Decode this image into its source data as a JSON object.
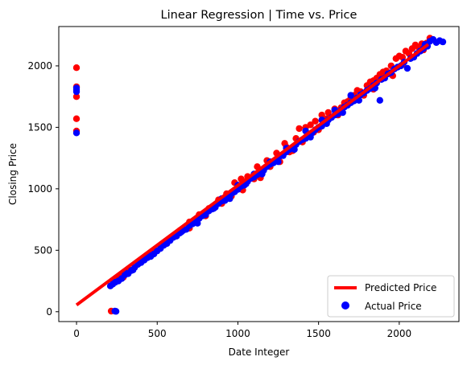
{
  "chart_data": {
    "type": "scatter",
    "title": "Linear Regression | Time vs. Price",
    "xlabel": "Date Integer",
    "ylabel": "Closing Price",
    "xlim": [
      -110,
      2370
    ],
    "ylim": [
      -80,
      2320
    ],
    "xticks": [
      0,
      500,
      1000,
      1500,
      2000
    ],
    "yticks": [
      0,
      500,
      1000,
      1500,
      2000
    ],
    "grid": false,
    "legend_position": "bottom-right",
    "colors": {
      "predicted_price": "#ff0000",
      "actual_price": "#0000ff",
      "prediction_scatter": "#ff0000"
    },
    "regression_line": {
      "name": "Predicted Price",
      "points": [
        [
          0,
          55
        ],
        [
          2180,
          2175
        ]
      ]
    },
    "series": [
      {
        "name": "Actual Price",
        "marker_color": "#0000ff",
        "points": [
          [
            0,
            1455
          ],
          [
            0,
            1790
          ],
          [
            0,
            1805
          ],
          [
            0,
            1820
          ],
          [
            238,
            5
          ],
          [
            245,
            3
          ],
          [
            210,
            210
          ],
          [
            225,
            225
          ],
          [
            240,
            240
          ],
          [
            260,
            250
          ],
          [
            280,
            270
          ],
          [
            300,
            300
          ],
          [
            320,
            310
          ],
          [
            340,
            335
          ],
          [
            360,
            360
          ],
          [
            380,
            385
          ],
          [
            400,
            400
          ],
          [
            420,
            420
          ],
          [
            440,
            440
          ],
          [
            460,
            450
          ],
          [
            480,
            470
          ],
          [
            500,
            495
          ],
          [
            520,
            515
          ],
          [
            540,
            540
          ],
          [
            560,
            555
          ],
          [
            580,
            580
          ],
          [
            600,
            605
          ],
          [
            620,
            615
          ],
          [
            640,
            640
          ],
          [
            660,
            660
          ],
          [
            680,
            670
          ],
          [
            700,
            700
          ],
          [
            720,
            715
          ],
          [
            740,
            735
          ],
          [
            760,
            760
          ],
          [
            780,
            780
          ],
          [
            800,
            790
          ],
          [
            820,
            820
          ],
          [
            840,
            835
          ],
          [
            860,
            850
          ],
          [
            880,
            880
          ],
          [
            900,
            900
          ],
          [
            920,
            905
          ],
          [
            940,
            935
          ],
          [
            960,
            960
          ],
          [
            980,
            975
          ],
          [
            1000,
            995
          ],
          [
            1020,
            1020
          ],
          [
            1040,
            1030
          ],
          [
            1060,
            1060
          ],
          [
            1080,
            1085
          ],
          [
            1100,
            1095
          ],
          [
            1120,
            1115
          ],
          [
            1140,
            1140
          ],
          [
            1160,
            1150
          ],
          [
            1180,
            1180
          ],
          [
            1200,
            1200
          ],
          [
            1220,
            1210
          ],
          [
            1240,
            1240
          ],
          [
            1260,
            1265
          ],
          [
            1280,
            1270
          ],
          [
            1300,
            1300
          ],
          [
            1320,
            1320
          ],
          [
            1340,
            1330
          ],
          [
            1360,
            1360
          ],
          [
            1380,
            1385
          ],
          [
            1400,
            1400
          ],
          [
            1420,
            1410
          ],
          [
            1440,
            1440
          ],
          [
            1460,
            1455
          ],
          [
            1480,
            1480
          ],
          [
            1500,
            1500
          ],
          [
            1520,
            1510
          ],
          [
            1540,
            1545
          ],
          [
            1560,
            1560
          ],
          [
            1580,
            1580
          ],
          [
            1600,
            1600
          ],
          [
            1620,
            1610
          ],
          [
            1640,
            1640
          ],
          [
            1660,
            1665
          ],
          [
            1680,
            1680
          ],
          [
            1700,
            1700
          ],
          [
            1720,
            1715
          ],
          [
            1740,
            1740
          ],
          [
            1760,
            1765
          ],
          [
            1780,
            1780
          ],
          [
            1800,
            1800
          ],
          [
            1820,
            1815
          ],
          [
            1840,
            1840
          ],
          [
            1860,
            1860
          ],
          [
            1880,
            1720
          ],
          [
            1890,
            1890
          ],
          [
            1910,
            1900
          ],
          [
            1930,
            1935
          ],
          [
            1950,
            1945
          ],
          [
            1970,
            1975
          ],
          [
            1990,
            1990
          ],
          [
            2010,
            2000
          ],
          [
            2030,
            2030
          ],
          [
            2050,
            1980
          ],
          [
            2070,
            2060
          ],
          [
            2090,
            2070
          ],
          [
            2110,
            2100
          ],
          [
            2130,
            2120
          ],
          [
            2150,
            2140
          ],
          [
            2160,
            2175
          ],
          [
            2175,
            2160
          ],
          [
            2190,
            2200
          ],
          [
            2210,
            2215
          ],
          [
            2230,
            2190
          ],
          [
            2250,
            2205
          ],
          [
            2270,
            2195
          ],
          [
            300,
            320
          ],
          [
            350,
            340
          ],
          [
            450,
            460
          ],
          [
            550,
            560
          ],
          [
            650,
            650
          ],
          [
            750,
            720
          ],
          [
            850,
            840
          ],
          [
            950,
            920
          ],
          [
            1050,
            1040
          ],
          [
            1150,
            1120
          ],
          [
            1250,
            1220
          ],
          [
            1350,
            1320
          ],
          [
            1450,
            1420
          ],
          [
            1550,
            1530
          ],
          [
            1650,
            1620
          ],
          [
            1750,
            1720
          ],
          [
            1850,
            1820
          ],
          [
            1420,
            1470
          ],
          [
            1520,
            1560
          ],
          [
            1600,
            1640
          ],
          [
            1700,
            1760
          ],
          [
            1300,
            1330
          ],
          [
            1200,
            1220
          ],
          [
            1100,
            1120
          ],
          [
            1000,
            1030
          ],
          [
            900,
            920
          ]
        ]
      },
      {
        "name": "",
        "marker_color": "#ff0000",
        "points": [
          [
            0,
            1985
          ],
          [
            0,
            1830
          ],
          [
            0,
            1750
          ],
          [
            0,
            1570
          ],
          [
            0,
            1470
          ],
          [
            215,
            5
          ],
          [
            230,
            250
          ],
          [
            250,
            265
          ],
          [
            270,
            290
          ],
          [
            290,
            280
          ],
          [
            310,
            325
          ],
          [
            330,
            340
          ],
          [
            400,
            420
          ],
          [
            480,
            490
          ],
          [
            560,
            570
          ],
          [
            640,
            660
          ],
          [
            700,
            730
          ],
          [
            760,
            790
          ],
          [
            820,
            840
          ],
          [
            880,
            910
          ],
          [
            930,
            960
          ],
          [
            980,
            1050
          ],
          [
            1020,
            1080
          ],
          [
            1060,
            1100
          ],
          [
            1120,
            1180
          ],
          [
            1180,
            1230
          ],
          [
            1240,
            1290
          ],
          [
            1290,
            1370
          ],
          [
            1340,
            1310
          ],
          [
            1380,
            1490
          ],
          [
            1420,
            1500
          ],
          [
            1450,
            1520
          ],
          [
            1480,
            1550
          ],
          [
            1520,
            1600
          ],
          [
            1560,
            1620
          ],
          [
            1600,
            1650
          ],
          [
            1640,
            1660
          ],
          [
            1680,
            1710
          ],
          [
            1720,
            1760
          ],
          [
            1760,
            1790
          ],
          [
            1800,
            1840
          ],
          [
            1840,
            1880
          ],
          [
            1880,
            1930
          ],
          [
            1900,
            1950
          ],
          [
            1950,
            2000
          ],
          [
            1980,
            2060
          ],
          [
            2000,
            2080
          ],
          [
            2040,
            2120
          ],
          [
            2080,
            2140
          ],
          [
            2100,
            2170
          ],
          [
            2140,
            2180
          ],
          [
            2170,
            2185
          ],
          [
            2190,
            2225
          ],
          [
            960,
            940
          ],
          [
            1030,
            990
          ],
          [
            1140,
            1090
          ],
          [
            1260,
            1220
          ],
          [
            1300,
            1340
          ],
          [
            1360,
            1410
          ],
          [
            1470,
            1460
          ],
          [
            1550,
            1570
          ],
          [
            1660,
            1700
          ],
          [
            1700,
            1740
          ],
          [
            1740,
            1800
          ],
          [
            1820,
            1870
          ],
          [
            1860,
            1900
          ],
          [
            1920,
            1960
          ],
          [
            2020,
            2070
          ],
          [
            2060,
            2100
          ],
          [
            2120,
            2150
          ],
          [
            1400,
            1380
          ],
          [
            1500,
            1480
          ],
          [
            1620,
            1600
          ],
          [
            1780,
            1760
          ],
          [
            1840,
            1810
          ],
          [
            1960,
            1920
          ],
          [
            2020,
            2010
          ],
          [
            2150,
            2130
          ],
          [
            700,
            680
          ],
          [
            800,
            780
          ],
          [
            900,
            880
          ],
          [
            1100,
            1080
          ],
          [
            1200,
            1180
          ],
          [
            1320,
            1300
          ]
        ]
      }
    ],
    "legend": [
      {
        "label": "Predicted Price",
        "symbol": "line",
        "color": "#ff0000"
      },
      {
        "label": "Actual Price",
        "symbol": "marker",
        "color": "#0000ff"
      }
    ]
  }
}
